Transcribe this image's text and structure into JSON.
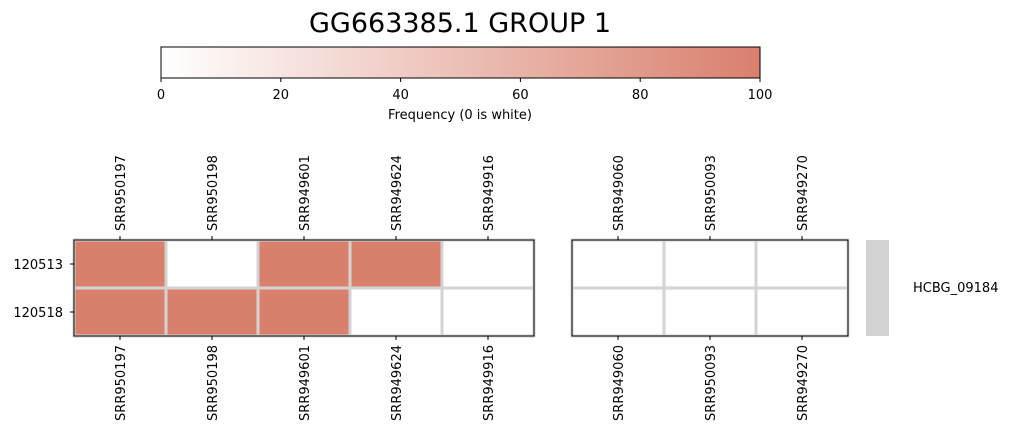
{
  "chart_data": {
    "type": "heatmap",
    "title": "GG663385.1 GROUP 1",
    "colorbar": {
      "label": "Frequency (0 is white)",
      "min": 0,
      "max": 100,
      "ticks": [
        "0",
        "20",
        "40",
        "60",
        "80",
        "100"
      ],
      "color_low": "#ffffff",
      "color_high": "#d9806d",
      "orientation": "horizontal",
      "placement": "top"
    },
    "rows": [
      "120513",
      "120518"
    ],
    "panels": [
      {
        "columns": [
          "SRR950197",
          "SRR950198",
          "SRR949601",
          "SRR949624",
          "SRR949916"
        ],
        "values": [
          [
            100,
            0,
            100,
            100,
            0
          ],
          [
            100,
            100,
            100,
            0,
            0
          ]
        ]
      },
      {
        "columns": [
          "SRR949060",
          "SRR950093",
          "SRR949270"
        ],
        "values": [
          [
            0,
            0,
            0
          ],
          [
            0,
            0,
            0
          ]
        ]
      }
    ],
    "row_group": {
      "label": "HCBG_09184",
      "color": "#d3d3d3"
    },
    "grid_color": "#d3d3d3"
  }
}
